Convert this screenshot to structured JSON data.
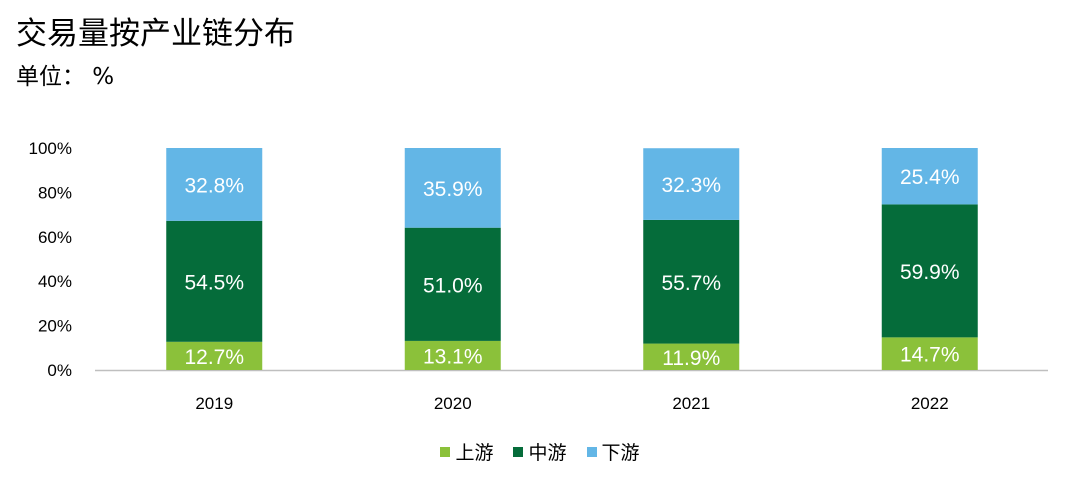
{
  "title": "交易量按产业链分布",
  "unit_label": "单位：  %",
  "chart_data": {
    "type": "bar",
    "stacked": true,
    "categories": [
      "2019",
      "2020",
      "2021",
      "2022"
    ],
    "series": [
      {
        "name": "上游",
        "color": "#8bc13a",
        "values": [
          12.7,
          13.1,
          11.9,
          14.7
        ]
      },
      {
        "name": "中游",
        "color": "#056c3a",
        "values": [
          54.5,
          51.0,
          55.7,
          59.9
        ]
      },
      {
        "name": "下游",
        "color": "#63b6e6",
        "values": [
          32.8,
          35.9,
          32.3,
          25.4
        ]
      }
    ],
    "ylim": [
      0,
      100
    ],
    "yticks": [
      "0%",
      "20%",
      "40%",
      "60%",
      "80%",
      "100%"
    ],
    "value_suffix": "%",
    "legend_position": "bottom",
    "grid": false
  }
}
